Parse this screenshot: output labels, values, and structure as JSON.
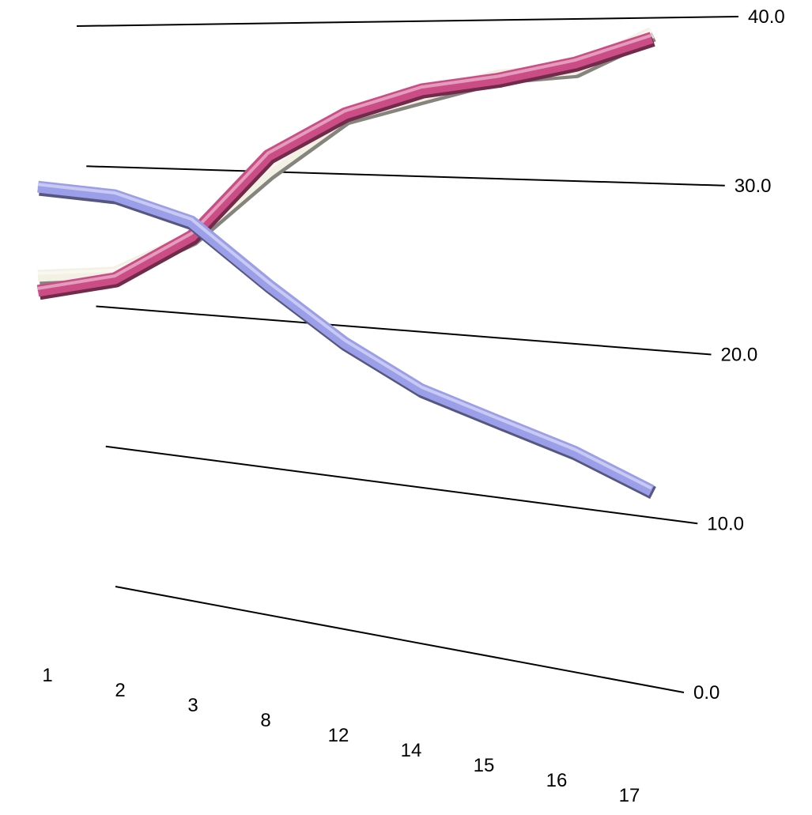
{
  "chart_data": {
    "type": "line",
    "title": "",
    "xlabel": "",
    "ylabel": "",
    "categories": [
      "1",
      "2",
      "3",
      "8",
      "12",
      "14",
      "15",
      "16",
      "17"
    ],
    "y_ticks": [
      "0.0",
      "10.0",
      "20.0",
      "30.0",
      "40.0"
    ],
    "ylim": [
      0,
      40
    ],
    "grid": true,
    "legend": "none",
    "series": [
      {
        "color": "#f3f1e4",
        "values": [
          21.9,
          22.5,
          25.3,
          30.0,
          33.8,
          35.2,
          36.5,
          36.9,
          39.1
        ]
      },
      {
        "color": "#cc4d86",
        "values": [
          20.8,
          22.1,
          25.4,
          31.1,
          34.0,
          35.6,
          36.3,
          37.3,
          38.8
        ]
      },
      {
        "color": "#9b9ee8",
        "values": [
          28.4,
          28.0,
          26.4,
          22.4,
          18.9,
          16.3,
          14.8,
          13.4,
          11.6
        ]
      }
    ]
  }
}
